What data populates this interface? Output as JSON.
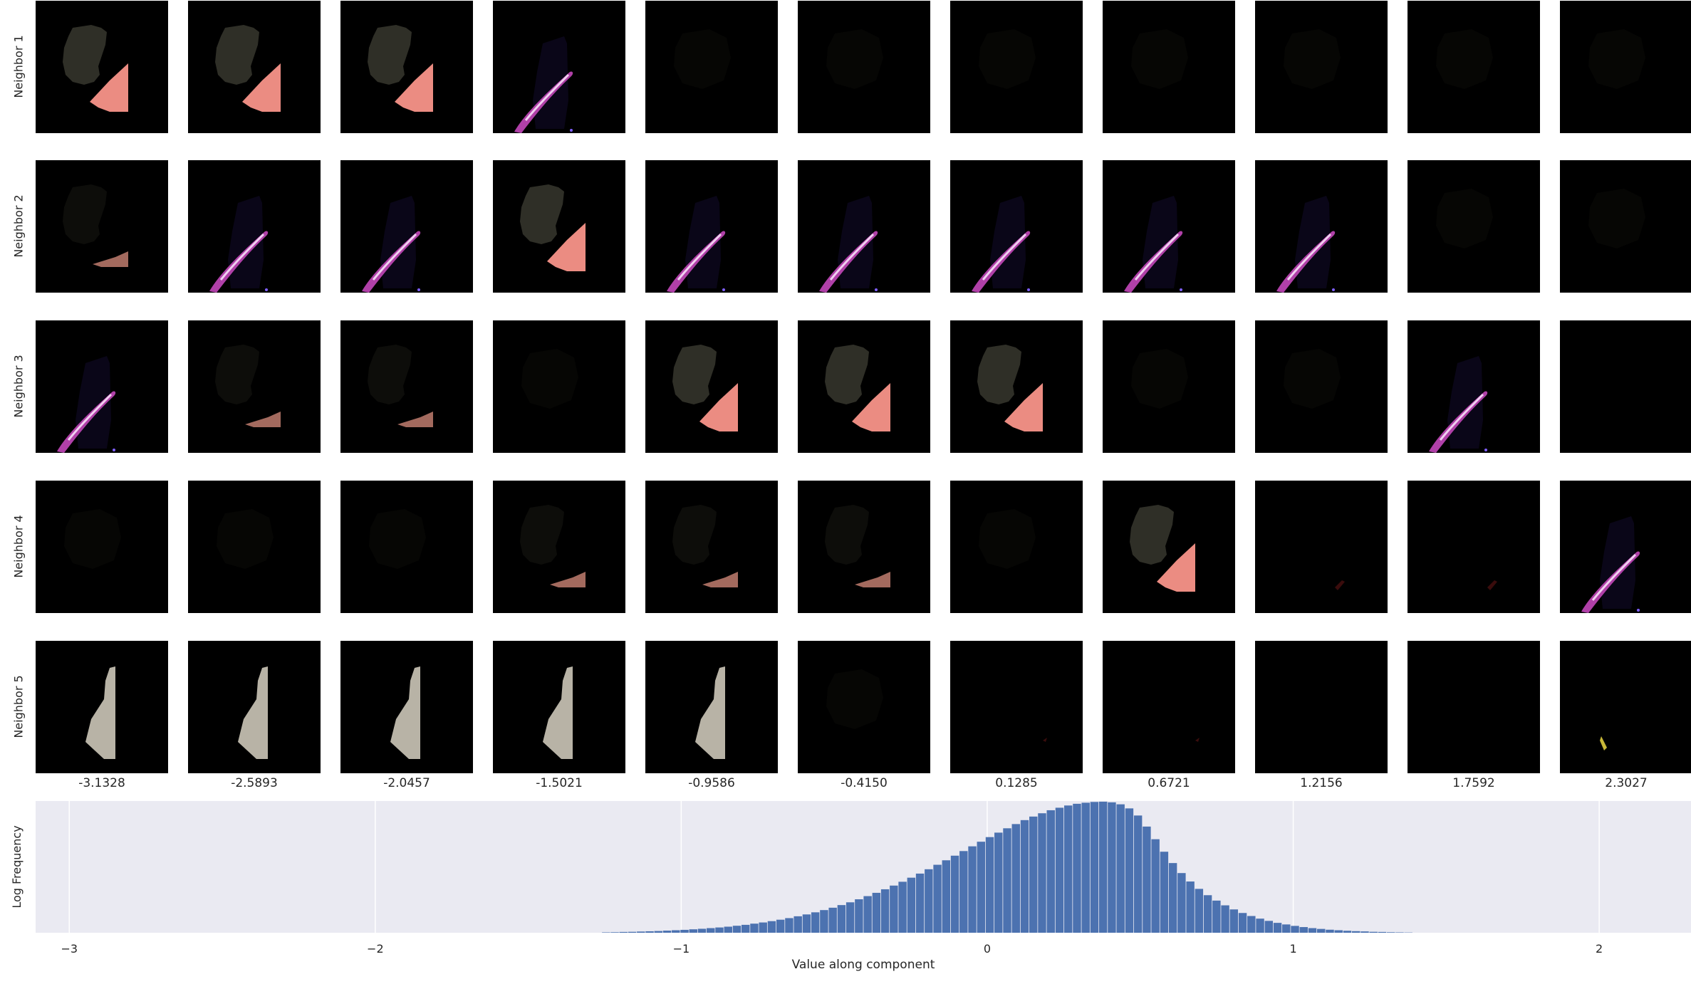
{
  "grid": {
    "row_labels": [
      "Neighbor 1",
      "Neighbor 2",
      "Neighbor 3",
      "Neighbor 4",
      "Neighbor 5"
    ],
    "column_values": [
      "-3.1328",
      "-2.5893",
      "-2.0457",
      "-1.5021",
      "-0.9586",
      "-0.4150",
      "0.1285",
      "0.6721",
      "1.2156",
      "1.7592",
      "2.3027"
    ],
    "thumbnail_kinds": [
      [
        "lesion-bright",
        "lesion-bright",
        "lesion-bright",
        "streak-bright",
        "faint",
        "faint",
        "faint",
        "faint",
        "faint",
        "faint",
        "faint"
      ],
      [
        "lesion-dim",
        "streak-bright",
        "streak-bright",
        "lesion-bright",
        "streak-bright",
        "streak-bright",
        "streak-bright",
        "streak-bright",
        "streak-bright",
        "faint",
        "faint"
      ],
      [
        "streak-bright",
        "lesion-dim",
        "lesion-dim",
        "faint",
        "lesion-bright",
        "lesion-bright",
        "lesion-bright",
        "faint",
        "faint",
        "streak-bright",
        "empty"
      ],
      [
        "faint",
        "faint",
        "faint",
        "lesion-dim",
        "lesion-dim",
        "lesion-dim",
        "faint",
        "lesion-bright",
        "streak-trace",
        "streak-trace",
        "streak-bright"
      ],
      [
        "bone-bright",
        "bone-bright",
        "bone-bright",
        "bone-bright",
        "bone-bright",
        "faint",
        "red-speck",
        "red-speck",
        "empty",
        "empty",
        "yellow-speck"
      ]
    ]
  },
  "chart_data": {
    "type": "bar",
    "title": "",
    "xlabel": "Value along component",
    "ylabel": "Log Frequency",
    "xlim": [
      -3.11,
      2.3
    ],
    "xticks": [
      -3,
      -2,
      -1,
      0,
      1,
      2
    ],
    "xtick_labels": [
      "−3",
      "−2",
      "−1",
      "0",
      "1",
      "2"
    ],
    "ylim": [
      0,
      1.0
    ],
    "grid": true,
    "bin_width": 0.0285,
    "bins": {
      "start": -1.26,
      "values": [
        0.003,
        0.004,
        0.006,
        0.007,
        0.009,
        0.011,
        0.013,
        0.016,
        0.019,
        0.022,
        0.026,
        0.03,
        0.035,
        0.04,
        0.046,
        0.053,
        0.06,
        0.069,
        0.078,
        0.088,
        0.099,
        0.111,
        0.125,
        0.139,
        0.155,
        0.172,
        0.19,
        0.21,
        0.231,
        0.254,
        0.278,
        0.303,
        0.33,
        0.358,
        0.387,
        0.418,
        0.449,
        0.482,
        0.516,
        0.55,
        0.585,
        0.62,
        0.656,
        0.691,
        0.726,
        0.76,
        0.793,
        0.825,
        0.855,
        0.882,
        0.907,
        0.93,
        0.949,
        0.966,
        0.979,
        0.987,
        0.993,
        0.995,
        0.99,
        0.975,
        0.944,
        0.89,
        0.806,
        0.71,
        0.615,
        0.529,
        0.453,
        0.389,
        0.333,
        0.285,
        0.244,
        0.208,
        0.177,
        0.15,
        0.127,
        0.107,
        0.09,
        0.075,
        0.063,
        0.052,
        0.043,
        0.035,
        0.029,
        0.023,
        0.019,
        0.015,
        0.012,
        0.01,
        0.007,
        0.006,
        0.004,
        0.003,
        0.002
      ]
    },
    "bar_color": "#4c72b0",
    "background_color": "#eaeaf2",
    "gridline_color": "#ffffff"
  }
}
